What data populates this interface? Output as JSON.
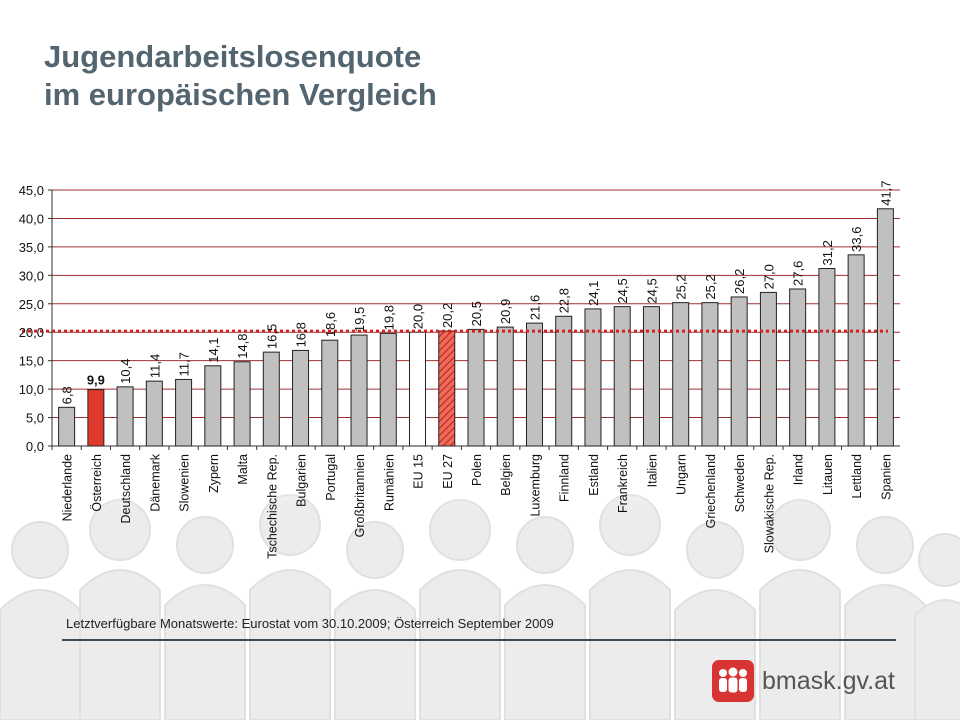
{
  "slide": {
    "title_line1": "Jugendarbeitslosenquote",
    "title_line2": "im europäischen Vergleich",
    "footnote": "Letztverfügbare Monatswerte: Eurostat vom 30.10.2009; Österreich September 2009",
    "logo_text": "bmask.gv.at"
  },
  "colors": {
    "bar": "#c0c0c0",
    "highlight": "#e03a2e",
    "eu27": "#f06a5a",
    "eu15": "#ffffff",
    "grid": "#a03030",
    "reference": "#d42020"
  },
  "chart_data": {
    "type": "bar",
    "title": "",
    "xlabel": "",
    "ylabel": "",
    "ylim": [
      0,
      45
    ],
    "yticks": [
      "0,0",
      "5,0",
      "10,0",
      "15,0",
      "20,0",
      "25,0",
      "30,0",
      "35,0",
      "40,0",
      "45,0"
    ],
    "grid": true,
    "reference_line": 20.2,
    "categories": [
      "Niederlande",
      "Österreich",
      "Deutschland",
      "Dänemark",
      "Slowenien",
      "Zypern",
      "Malta",
      "Tschechische Rep.",
      "Bulgarien",
      "Portugal",
      "Großbritannien",
      "Rumänien",
      "EU 15",
      "EU 27",
      "Polen",
      "Belgien",
      "Luxemburg",
      "Finnland",
      "Estland",
      "Frankreich",
      "Italien",
      "Ungarn",
      "Griechenland",
      "Schweden",
      "Slowakische Rep.",
      "Irland",
      "Litauen",
      "Lettland",
      "Spanien"
    ],
    "values": [
      6.8,
      9.9,
      10.4,
      11.4,
      11.7,
      14.1,
      14.8,
      16.5,
      16.8,
      18.6,
      19.5,
      19.8,
      20.0,
      20.2,
      20.5,
      20.9,
      21.6,
      22.8,
      24.1,
      24.5,
      24.5,
      25.2,
      25.2,
      26.2,
      27.0,
      27.6,
      31.2,
      33.6,
      41.7
    ],
    "value_labels": [
      "6,8",
      "9,9",
      "10,4",
      "11,4",
      "11,7",
      "14,1",
      "14,8",
      "16,5",
      "16,8",
      "18,6",
      "19,5",
      "19,8",
      "20,0",
      "20,2",
      "20,5",
      "20,9",
      "21,6",
      "22,8",
      "24,1",
      "24,5",
      "24,5",
      "25,2",
      "25,2",
      "26,2",
      "27,0",
      "27,6",
      "31,2",
      "33,6",
      "41,7"
    ],
    "highlight": "Österreich",
    "eu_average": "EU 27",
    "eu15": "EU 15"
  }
}
